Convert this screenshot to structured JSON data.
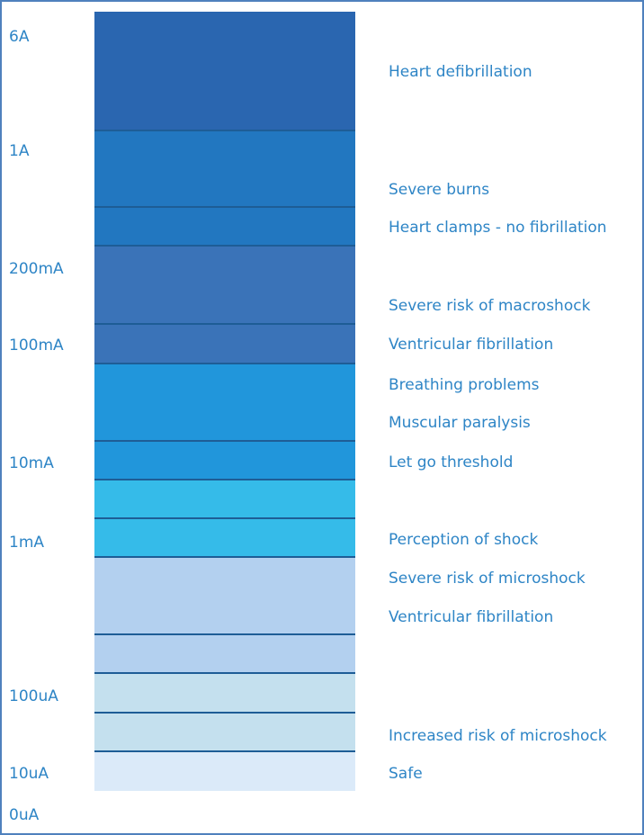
{
  "scale_labels": [
    "6A",
    "1A",
    "200mA",
    "100mA",
    "10mA",
    "1mA",
    "100uA",
    "10uA",
    "0uA"
  ],
  "effects": [
    "Heart defibrillation",
    "Severe burns",
    "Heart clamps - no fibrillation",
    "Severe risk of macroshock",
    "Ventricular fibrillation",
    "Breathing problems",
    "Muscular paralysis",
    "Let go threshold",
    "Perception of shock",
    "Severe risk of microshock",
    "Ventricular fibrillation",
    "Increased risk of microshock",
    "Safe"
  ],
  "colors": {
    "band_6A": "#2a66b0",
    "band_1A": "#2277c0",
    "band_200mA": "#3a73b8",
    "band_100mA_10mA": "#2196db",
    "band_1mA": "#35bbe9",
    "band_100uA": "#b3d0ef",
    "band_10uA": "#c4e0ee",
    "band_safe": "#dbeaf9",
    "text": "#2e85c6",
    "separator": "#1e5d96",
    "frame": "#4f81bd"
  }
}
